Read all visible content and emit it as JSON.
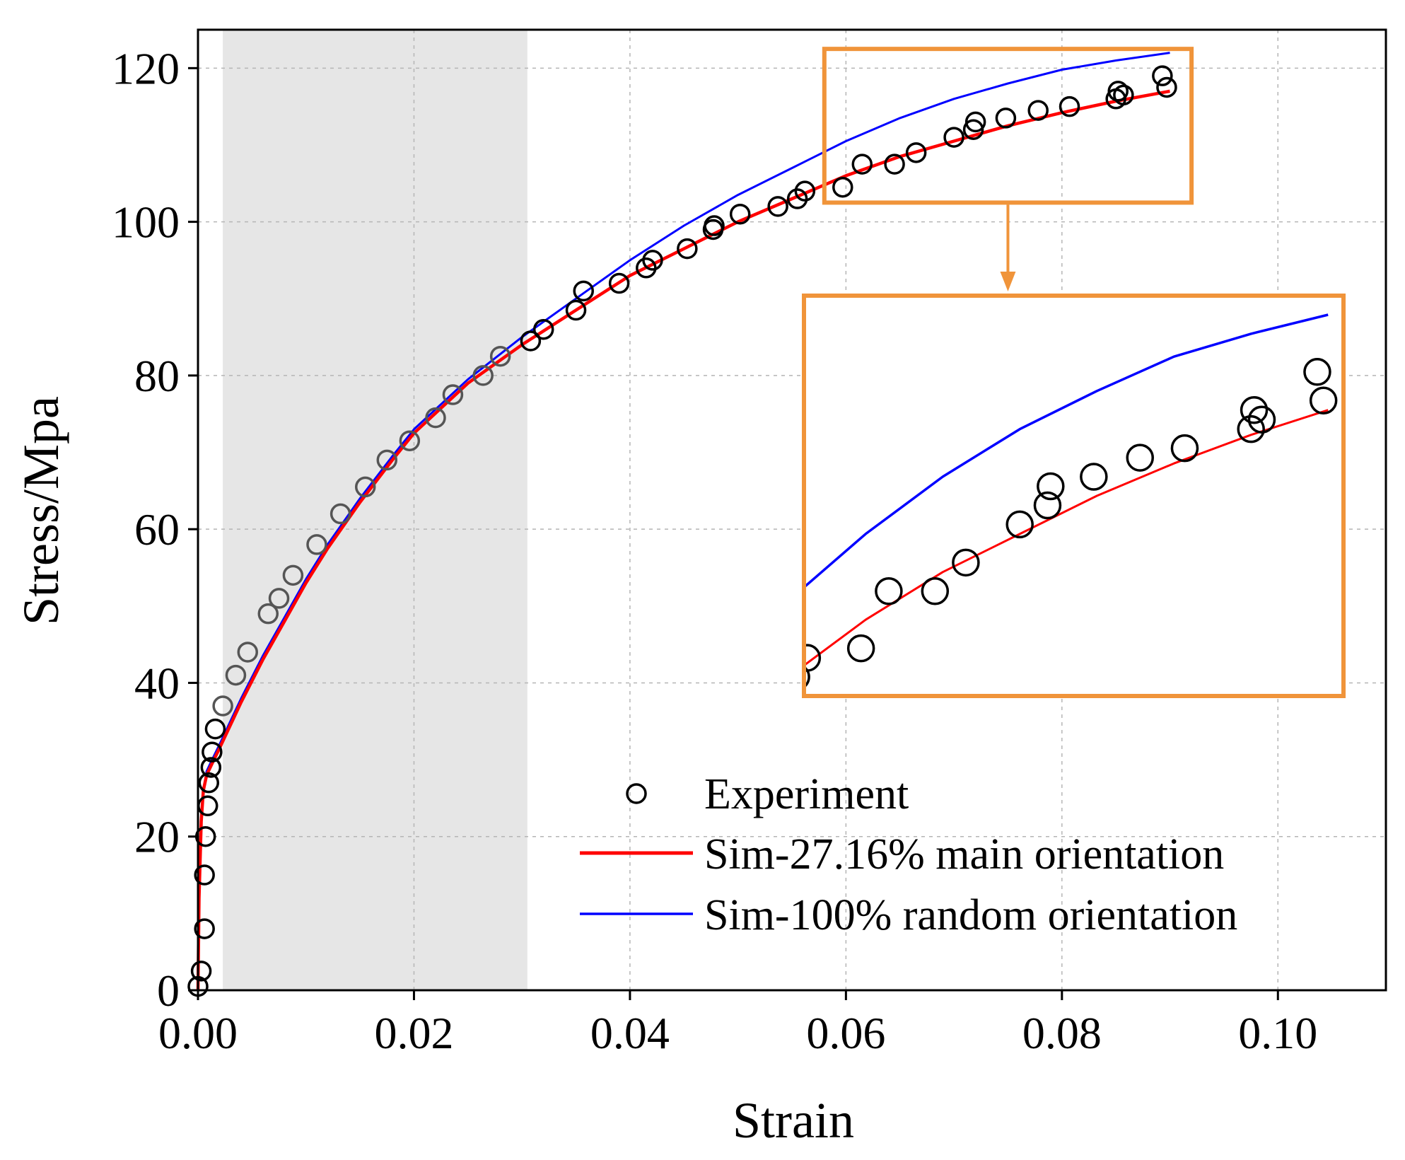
{
  "chart_data": {
    "type": "scatter",
    "title": "",
    "xlabel": "Strain",
    "ylabel": "Stress/Mpa",
    "xlim": [
      0.0,
      0.11
    ],
    "ylim": [
      0,
      125
    ],
    "grid": true,
    "xticks": [
      0.0,
      0.02,
      0.04,
      0.06,
      0.08,
      0.1
    ],
    "xtick_labels": [
      "0.00",
      "0.02",
      "0.04",
      "0.06",
      "0.08",
      "0.10"
    ],
    "yticks": [
      0,
      20,
      40,
      60,
      80,
      100,
      120
    ],
    "ytick_labels": [
      "0",
      "20",
      "40",
      "60",
      "80",
      "100",
      "120"
    ],
    "shaded_region": {
      "x0": 0.0023,
      "x1": 0.0305,
      "color": "#e6e6e6"
    },
    "legend": {
      "position": "bottom-right"
    },
    "series": [
      {
        "name": "Experiment",
        "kind": "scatter",
        "marker": "open-circle",
        "color": "#000000",
        "points": [
          [
            0.0,
            0.5
          ],
          [
            0.0003,
            2.5
          ],
          [
            0.0006,
            8
          ],
          [
            0.0006,
            15
          ],
          [
            0.0007,
            20
          ],
          [
            0.0009,
            24
          ],
          [
            0.001,
            27
          ],
          [
            0.0012,
            29
          ],
          [
            0.0013,
            31
          ],
          [
            0.0016,
            34
          ],
          [
            0.0023,
            37
          ],
          [
            0.0035,
            41
          ],
          [
            0.0046,
            44
          ],
          [
            0.0065,
            49
          ],
          [
            0.0075,
            51
          ],
          [
            0.0088,
            54
          ],
          [
            0.011,
            58
          ],
          [
            0.0132,
            62
          ],
          [
            0.0155,
            65.5
          ],
          [
            0.0175,
            69
          ],
          [
            0.0196,
            71.5
          ],
          [
            0.022,
            74.5
          ],
          [
            0.0236,
            77.5
          ],
          [
            0.0264,
            80
          ],
          [
            0.028,
            82.5
          ],
          [
            0.0308,
            84.5
          ],
          [
            0.032,
            86
          ],
          [
            0.035,
            88.5
          ],
          [
            0.0357,
            91
          ],
          [
            0.039,
            92
          ],
          [
            0.0415,
            94
          ],
          [
            0.0421,
            95
          ],
          [
            0.0453,
            96.5
          ],
          [
            0.0477,
            99
          ],
          [
            0.0478,
            99.5
          ],
          [
            0.0502,
            101
          ],
          [
            0.0537,
            102
          ],
          [
            0.0555,
            103
          ],
          [
            0.0562,
            104
          ],
          [
            0.0597,
            104.5
          ],
          [
            0.0615,
            107.5
          ],
          [
            0.0645,
            107.5
          ],
          [
            0.0665,
            109
          ],
          [
            0.07,
            111
          ],
          [
            0.0718,
            112
          ],
          [
            0.072,
            113
          ],
          [
            0.0748,
            113.5
          ],
          [
            0.0778,
            114.5
          ],
          [
            0.0807,
            115
          ],
          [
            0.085,
            116
          ],
          [
            0.0852,
            117
          ],
          [
            0.0857,
            116.5
          ],
          [
            0.0893,
            119
          ],
          [
            0.0897,
            117.5
          ]
        ]
      },
      {
        "name": "Sim-27.16% main orientation",
        "kind": "line",
        "color": "#ff0000",
        "linewidth": 4.5,
        "points": [
          [
            0.0,
            0
          ],
          [
            0.0001,
            12
          ],
          [
            0.0003,
            22
          ],
          [
            0.0005,
            26
          ],
          [
            0.0008,
            28
          ],
          [
            0.0013,
            29.5
          ],
          [
            0.002,
            31.5
          ],
          [
            0.003,
            34.5
          ],
          [
            0.004,
            37.5
          ],
          [
            0.006,
            43
          ],
          [
            0.008,
            48
          ],
          [
            0.01,
            53
          ],
          [
            0.012,
            57.5
          ],
          [
            0.015,
            63.5
          ],
          [
            0.018,
            69
          ],
          [
            0.02,
            72.5
          ],
          [
            0.025,
            79
          ],
          [
            0.03,
            84
          ],
          [
            0.035,
            88.5
          ],
          [
            0.04,
            93
          ],
          [
            0.045,
            96.5
          ],
          [
            0.05,
            100
          ],
          [
            0.055,
            103
          ],
          [
            0.06,
            106
          ],
          [
            0.065,
            108.5
          ],
          [
            0.07,
            110.5
          ],
          [
            0.075,
            112.5
          ],
          [
            0.08,
            114.2
          ],
          [
            0.085,
            115.7
          ],
          [
            0.09,
            117
          ]
        ]
      },
      {
        "name": "Sim-100% random orientation",
        "kind": "line",
        "color": "#0000ff",
        "linewidth": 3,
        "points": [
          [
            0.0,
            0
          ],
          [
            0.0001,
            12
          ],
          [
            0.0003,
            22
          ],
          [
            0.0005,
            26
          ],
          [
            0.0008,
            28.5
          ],
          [
            0.0013,
            30
          ],
          [
            0.002,
            32
          ],
          [
            0.003,
            35
          ],
          [
            0.004,
            38
          ],
          [
            0.006,
            43.5
          ],
          [
            0.008,
            48.5
          ],
          [
            0.01,
            53.5
          ],
          [
            0.012,
            58
          ],
          [
            0.015,
            64
          ],
          [
            0.018,
            69.5
          ],
          [
            0.02,
            73
          ],
          [
            0.025,
            79.5
          ],
          [
            0.03,
            85
          ],
          [
            0.035,
            90
          ],
          [
            0.04,
            95
          ],
          [
            0.045,
            99.5
          ],
          [
            0.05,
            103.5
          ],
          [
            0.055,
            107
          ],
          [
            0.06,
            110.5
          ],
          [
            0.065,
            113.5
          ],
          [
            0.07,
            116
          ],
          [
            0.075,
            118
          ],
          [
            0.08,
            119.8
          ],
          [
            0.085,
            121
          ],
          [
            0.09,
            122
          ]
        ]
      }
    ],
    "inset": {
      "source_rect": {
        "x0": 0.058,
        "x1": 0.092,
        "y0": 102.5,
        "y1": 122.5
      },
      "zoom_xlim": [
        0.056,
        0.091
      ],
      "zoom_ylim": [
        102,
        123
      ],
      "frame_color": "#f0943a"
    }
  }
}
